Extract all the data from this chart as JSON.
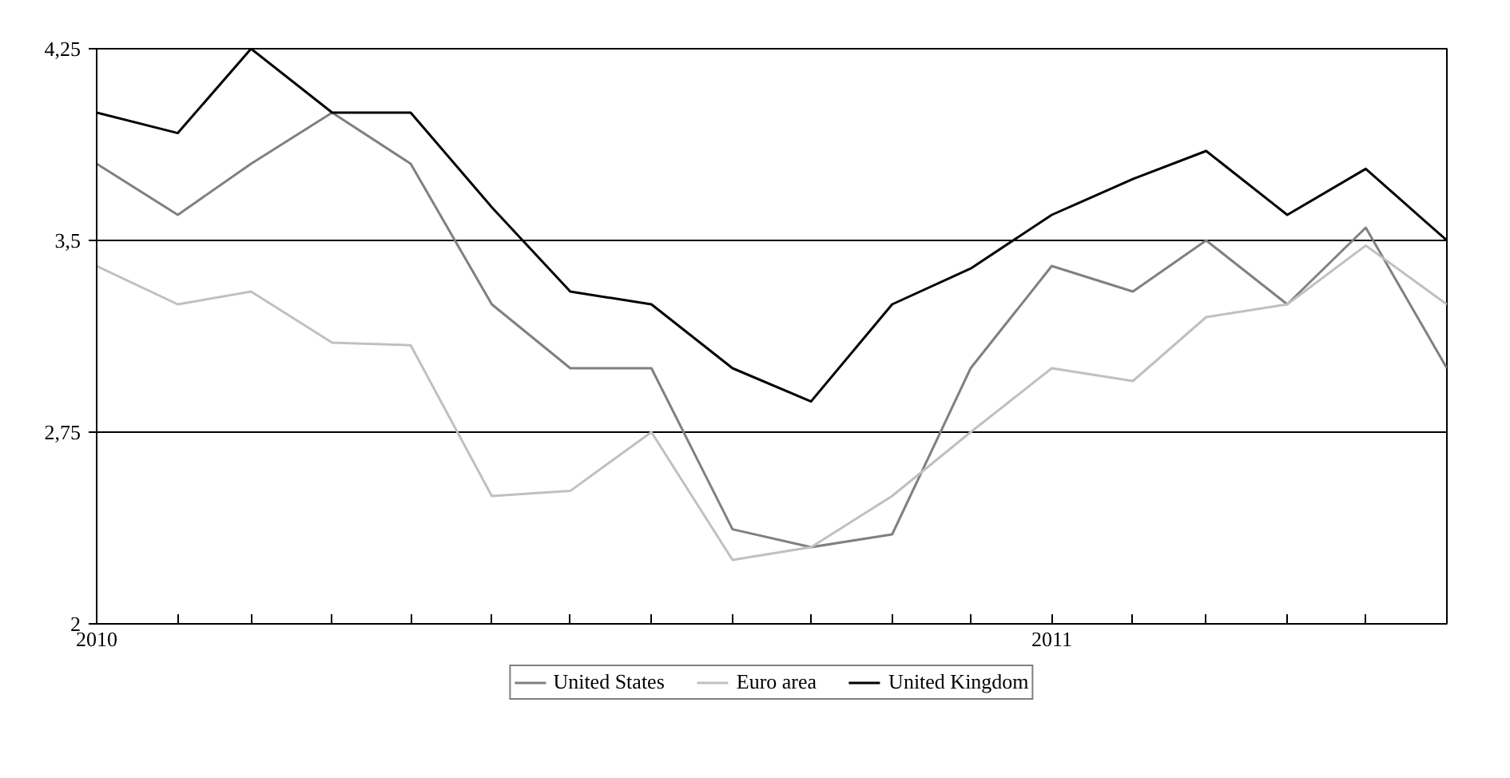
{
  "chart_data": {
    "type": "line",
    "x": [
      "2010-01",
      "2010-02",
      "2010-03",
      "2010-04",
      "2010-05",
      "2010-06",
      "2010-07",
      "2010-08",
      "2010-09",
      "2010-10",
      "2010-11",
      "2010-12",
      "2011-01",
      "2011-02",
      "2011-03",
      "2011-04",
      "2011-05",
      "2011-06"
    ],
    "series": [
      {
        "name": "United States",
        "color": "#808080",
        "values": [
          3.8,
          3.6,
          3.8,
          4.0,
          3.8,
          3.25,
          3.0,
          3.0,
          2.37,
          2.3,
          2.35,
          3.0,
          3.4,
          3.3,
          3.5,
          3.25,
          3.55,
          3.0
        ]
      },
      {
        "name": "Euro area",
        "color": "#c0c0c0",
        "values": [
          3.4,
          3.25,
          3.3,
          3.1,
          3.09,
          2.5,
          2.52,
          2.75,
          2.25,
          2.3,
          2.5,
          2.75,
          3.0,
          2.95,
          3.2,
          3.25,
          3.48,
          3.25
        ]
      },
      {
        "name": "United Kingdom",
        "color": "#000000",
        "values": [
          4.0,
          3.92,
          4.25,
          4.0,
          4.0,
          3.63,
          3.3,
          3.25,
          3.0,
          2.87,
          3.25,
          3.39,
          3.6,
          3.74,
          3.85,
          3.6,
          3.78,
          3.5
        ]
      }
    ],
    "xlim": [
      "2010-01",
      "2011-06"
    ],
    "xticks": [
      {
        "value": "2010-01",
        "label": "2010"
      },
      {
        "value": "2010-02",
        "label": null
      },
      {
        "value": "2010-03",
        "label": null
      },
      {
        "value": "2010-04",
        "label": null
      },
      {
        "value": "2010-05",
        "label": null
      },
      {
        "value": "2010-06",
        "label": null
      },
      {
        "value": "2010-07",
        "label": null
      },
      {
        "value": "2010-08",
        "label": null
      },
      {
        "value": "2010-09",
        "label": null
      },
      {
        "value": "2010-10",
        "label": null
      },
      {
        "value": "2010-11",
        "label": null
      },
      {
        "value": "2010-12",
        "label": null
      },
      {
        "value": "2011-01",
        "label": "2011"
      },
      {
        "value": "2011-02",
        "label": null
      },
      {
        "value": "2011-03",
        "label": null
      },
      {
        "value": "2011-04",
        "label": null
      },
      {
        "value": "2011-05",
        "label": null
      },
      {
        "value": "2011-06",
        "label": null
      }
    ],
    "ylim": [
      2,
      4.25
    ],
    "yticks": [
      2,
      {
        "value": 2.75,
        "label": "2,75"
      },
      {
        "value": 3.5,
        "label": "3,5"
      },
      {
        "value": 4.25,
        "label": "4,25"
      }
    ],
    "grid": "y",
    "legend": "bottom",
    "marker": "none",
    "line_style": "solid"
  }
}
